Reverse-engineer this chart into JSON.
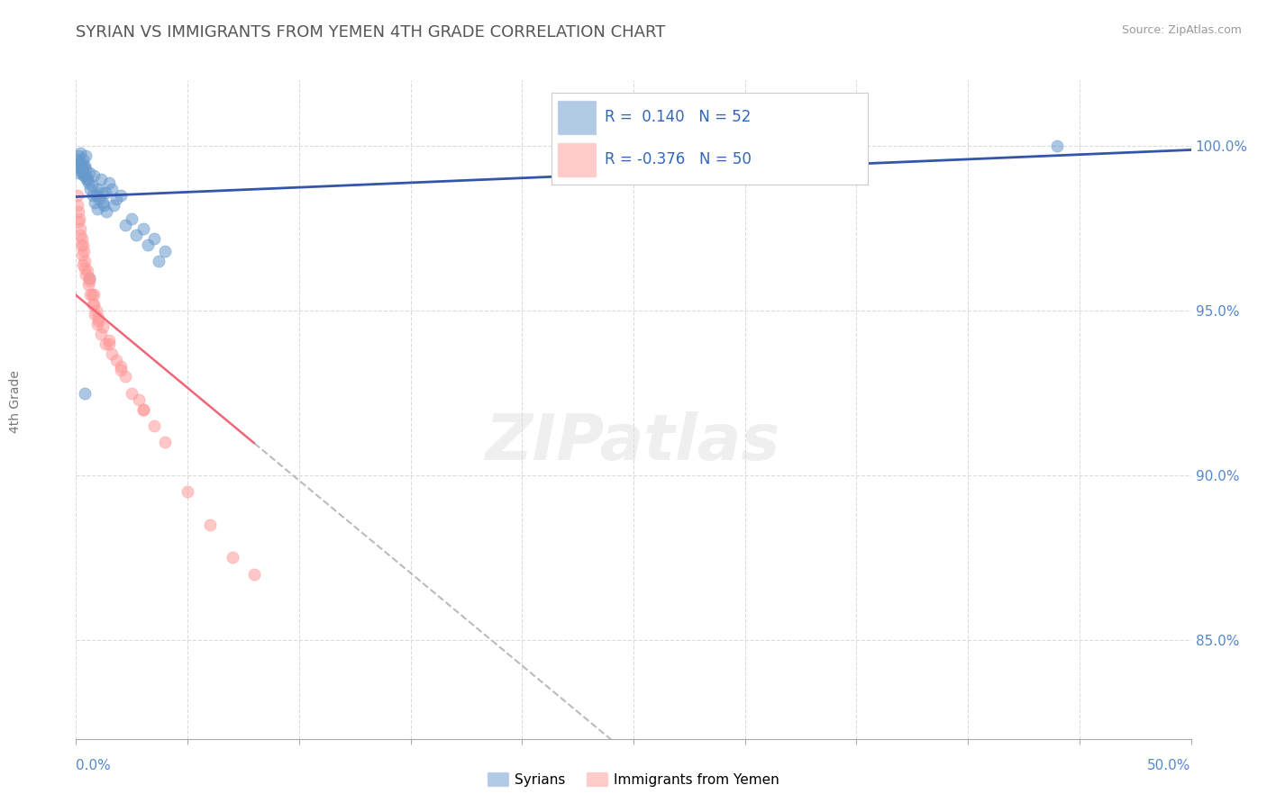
{
  "title": "SYRIAN VS IMMIGRANTS FROM YEMEN 4TH GRADE CORRELATION CHART",
  "source": "Source: ZipAtlas.com",
  "ylabel": "4th Grade",
  "yaxis_ticks": [
    85.0,
    90.0,
    95.0,
    100.0
  ],
  "xmin": 0.0,
  "xmax": 50.0,
  "ymin": 82.0,
  "ymax": 102.0,
  "blue_R": 0.14,
  "blue_N": 52,
  "pink_R": -0.376,
  "pink_N": 50,
  "blue_color": "#6699CC",
  "pink_color": "#FF9999",
  "blue_line_color": "#3355AA",
  "pink_line_color": "#EE6677",
  "dashed_line_color": "#BBBBBB",
  "background_color": "#FFFFFF",
  "grid_color": "#CCCCCC",
  "title_color": "#555555",
  "axis_label_color": "#5588CC",
  "legend_R_color": "#3366BB",
  "blue_scatter_x": [
    0.1,
    0.15,
    0.2,
    0.25,
    0.3,
    0.35,
    0.4,
    0.45,
    0.5,
    0.6,
    0.7,
    0.8,
    0.9,
    1.0,
    1.1,
    1.2,
    1.3,
    1.5,
    1.7,
    2.0,
    2.5,
    3.0,
    3.5,
    4.0,
    0.05,
    0.08,
    0.12,
    0.18,
    0.22,
    0.28,
    0.32,
    0.38,
    0.42,
    0.48,
    0.55,
    0.65,
    0.75,
    0.85,
    0.95,
    1.05,
    1.15,
    1.25,
    1.35,
    1.6,
    1.8,
    2.2,
    2.7,
    3.2,
    3.7,
    44.0,
    0.4,
    0.6
  ],
  "blue_scatter_y": [
    99.2,
    99.5,
    99.8,
    99.3,
    99.6,
    99.1,
    99.4,
    99.7,
    99.0,
    99.2,
    98.8,
    99.1,
    98.5,
    98.7,
    99.0,
    98.3,
    98.6,
    98.9,
    98.2,
    98.5,
    97.8,
    97.5,
    97.2,
    96.8,
    99.6,
    99.4,
    99.7,
    99.3,
    99.5,
    99.2,
    99.4,
    99.1,
    99.3,
    99.0,
    98.9,
    98.7,
    98.5,
    98.3,
    98.1,
    98.4,
    98.6,
    98.2,
    98.0,
    98.7,
    98.4,
    97.6,
    97.3,
    97.0,
    96.5,
    100.0,
    92.5,
    96.0
  ],
  "pink_scatter_x": [
    0.05,
    0.1,
    0.15,
    0.2,
    0.25,
    0.3,
    0.35,
    0.4,
    0.5,
    0.6,
    0.7,
    0.8,
    0.9,
    1.0,
    1.2,
    1.5,
    1.8,
    2.0,
    2.5,
    3.0,
    0.08,
    0.12,
    0.18,
    0.22,
    0.28,
    0.32,
    0.45,
    0.55,
    0.65,
    0.75,
    0.85,
    0.95,
    1.1,
    1.3,
    1.6,
    2.2,
    2.8,
    3.5,
    0.4,
    0.6,
    0.8,
    1.0,
    1.5,
    2.0,
    3.0,
    4.0,
    5.0,
    6.0,
    7.0,
    8.0
  ],
  "pink_scatter_y": [
    98.5,
    98.0,
    97.8,
    97.5,
    97.2,
    97.0,
    96.8,
    96.5,
    96.2,
    96.0,
    95.5,
    95.2,
    95.0,
    94.8,
    94.5,
    94.0,
    93.5,
    93.2,
    92.5,
    92.0,
    98.2,
    97.7,
    97.3,
    97.0,
    96.7,
    96.4,
    96.1,
    95.8,
    95.5,
    95.2,
    94.9,
    94.6,
    94.3,
    94.0,
    93.7,
    93.0,
    92.3,
    91.5,
    96.3,
    95.9,
    95.5,
    94.7,
    94.1,
    93.3,
    92.0,
    91.0,
    89.5,
    88.5,
    87.5,
    87.0
  ]
}
